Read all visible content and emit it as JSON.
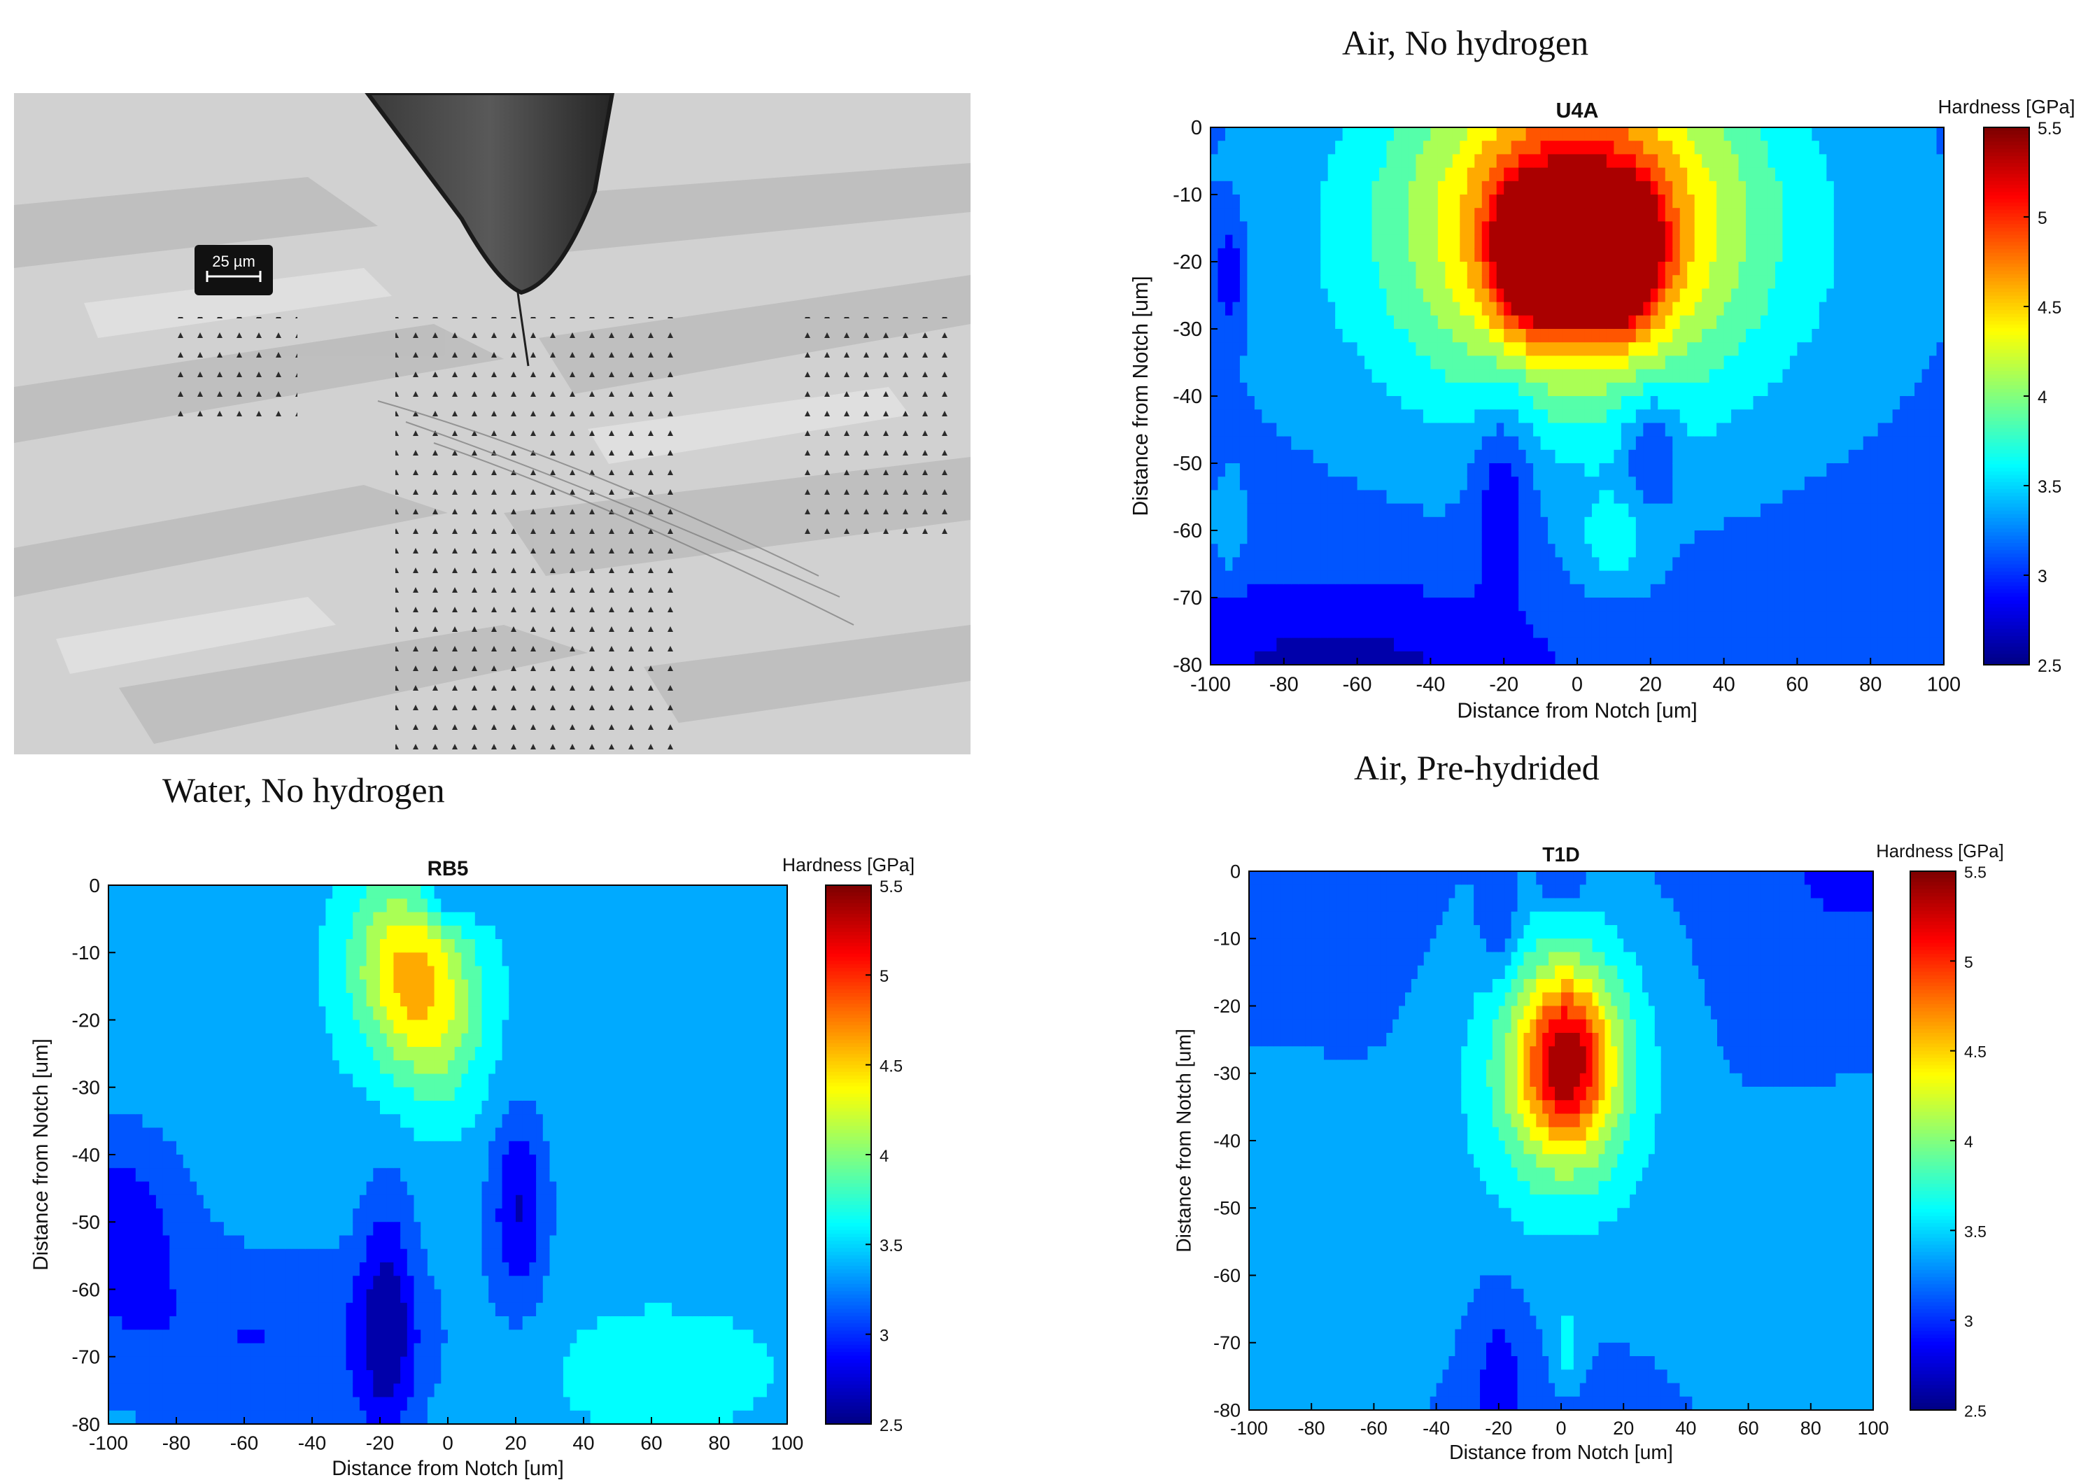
{
  "captions": {
    "micrograph": "Water, No hydrogen",
    "plot_top": "Air, No hydrogen",
    "plot_bottom_right": "Air, Pre-hydrided"
  },
  "micrograph": {
    "scale_bar": "25 µm"
  },
  "chart_data": [
    {
      "type": "heatmap",
      "title": "RB5",
      "xlabel": "Distance from Notch [um]",
      "ylabel": "Distance from Notch [um]",
      "xlim": [
        -100,
        100
      ],
      "ylim": [
        -80,
        0
      ],
      "x_ticks": [
        -100,
        -80,
        -60,
        -40,
        -20,
        0,
        20,
        40,
        60,
        80,
        100
      ],
      "y_ticks": [
        0,
        -10,
        -20,
        -30,
        -40,
        -50,
        -60,
        -70,
        -80
      ],
      "colorbar": {
        "label": "Hardness [GPa]",
        "range": [
          2.5,
          5.5
        ],
        "ticks": [
          5.5,
          5,
          4.5,
          4,
          3.5,
          3,
          2.5
        ],
        "colormap": "jet"
      },
      "grid": false,
      "base_level": 3.4,
      "hardness_peaks": [
        {
          "x": -12,
          "y": -12,
          "value": 4.45,
          "sx": 12,
          "sy": 10
        },
        {
          "x": -2,
          "y": -22,
          "value": 3.85,
          "sx": 10,
          "sy": 9
        },
        {
          "x": 0,
          "y": -2,
          "value": 2.9,
          "sx": 7,
          "sy": 3
        },
        {
          "x": 21,
          "y": -48,
          "value": 2.75,
          "sx": 6,
          "sy": 10
        },
        {
          "x": -18,
          "y": -65,
          "value": 2.75,
          "sx": 6,
          "sy": 14
        },
        {
          "x": -100,
          "y": -50,
          "value": 2.85,
          "sx": 16,
          "sy": 10
        },
        {
          "x": -55,
          "y": -68,
          "value": 3.0,
          "sx": 40,
          "sy": 10
        },
        {
          "x": 60,
          "y": -72,
          "value": 3.6,
          "sx": 30,
          "sy": 8
        }
      ]
    },
    {
      "type": "heatmap",
      "title": "U4A",
      "xlabel": "Distance from Notch [um]",
      "ylabel": "Distance from Notch [um]",
      "xlim": [
        -100,
        100
      ],
      "ylim": [
        -80,
        0
      ],
      "x_ticks": [
        -100,
        -80,
        -60,
        -40,
        -20,
        0,
        20,
        40,
        60,
        80,
        100
      ],
      "y_ticks": [
        0,
        -10,
        -20,
        -30,
        -40,
        -50,
        -60,
        -70,
        -80
      ],
      "colorbar": {
        "label": "Hardness [GPa]",
        "range": [
          2.5,
          5.5
        ],
        "ticks": [
          5.5,
          5,
          4.5,
          4,
          3.5,
          3,
          2.5
        ],
        "colormap": "jet"
      },
      "grid": false,
      "base_level": 3.15,
      "hardness_peaks": [
        {
          "x": -10,
          "y": -19,
          "value": 5.35,
          "sx": 8,
          "sy": 7
        },
        {
          "x": 10,
          "y": -19,
          "value": 5.35,
          "sx": 8,
          "sy": 7
        },
        {
          "x": 0,
          "y": -12,
          "value": 4.6,
          "sx": 30,
          "sy": 18
        },
        {
          "x": 0,
          "y": -18,
          "value": 3.75,
          "sx": 55,
          "sy": 22
        },
        {
          "x": -95,
          "y": -22,
          "value": 2.7,
          "sx": 3,
          "sy": 6
        },
        {
          "x": -20,
          "y": -52,
          "value": 2.65,
          "sx": 6,
          "sy": 10
        },
        {
          "x": 20,
          "y": -47,
          "value": 2.65,
          "sx": 5,
          "sy": 6
        },
        {
          "x": -95,
          "y": -60,
          "value": 3.5,
          "sx": 3,
          "sy": 5
        },
        {
          "x": 10,
          "y": -62,
          "value": 3.55,
          "sx": 8,
          "sy": 5
        },
        {
          "x": -65,
          "y": -82,
          "value": 2.65,
          "sx": 40,
          "sy": 10
        }
      ]
    },
    {
      "type": "heatmap",
      "title": "T1D",
      "xlabel": "Distance from Notch [um]",
      "ylabel": "Distance from Notch [um]",
      "xlim": [
        -100,
        100
      ],
      "ylim": [
        -80,
        0
      ],
      "x_ticks": [
        -100,
        -80,
        -60,
        -40,
        -20,
        0,
        20,
        40,
        60,
        80,
        100
      ],
      "y_ticks": [
        0,
        -10,
        -20,
        -30,
        -40,
        -50,
        -60,
        -70,
        -80
      ],
      "colorbar": {
        "label": "Hardness [GPa]",
        "range": [
          2.5,
          5.5
        ],
        "ticks": [
          5.5,
          5,
          4.5,
          4,
          3.5,
          3,
          2.5
        ],
        "colormap": "jet"
      },
      "grid": false,
      "base_level": 3.15,
      "hardness_peaks": [
        {
          "x": 2,
          "y": -28,
          "value": 4.5,
          "sx": 10,
          "sy": 9
        },
        {
          "x": 0,
          "y": -30,
          "value": 3.85,
          "sx": 18,
          "sy": 14
        },
        {
          "x": 0,
          "y": -28,
          "value": 3.45,
          "sx": 28,
          "sy": 22
        },
        {
          "x": -105,
          "y": -60,
          "value": 3.5,
          "sx": 45,
          "sy": 22
        },
        {
          "x": 105,
          "y": -62,
          "value": 3.5,
          "sx": 45,
          "sy": 20
        },
        {
          "x": -20,
          "y": -8,
          "value": 2.75,
          "sx": 4,
          "sy": 6
        },
        {
          "x": 0,
          "y": -2,
          "value": 2.8,
          "sx": 6,
          "sy": 3
        },
        {
          "x": -20,
          "y": -75,
          "value": 2.8,
          "sx": 6,
          "sy": 9
        },
        {
          "x": 100,
          "y": 0,
          "value": 2.85,
          "sx": 20,
          "sy": 6
        },
        {
          "x": 2,
          "y": -70,
          "value": 3.55,
          "sx": 3,
          "sy": 4
        }
      ]
    }
  ]
}
